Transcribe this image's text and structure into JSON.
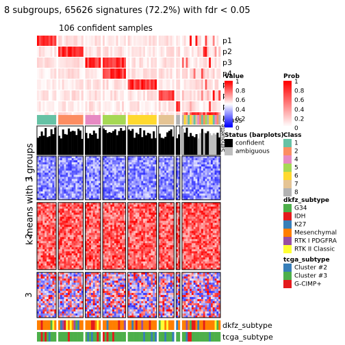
{
  "title": "8 subgroups, 65626 signatures (72.2%) with fdr < 0.05",
  "subtitle": "106 confident samples",
  "ylabel": "k-means with 3 groups",
  "row_groups": [
    "1",
    "2",
    "3"
  ],
  "prob_rows": [
    "p1",
    "p2",
    "p3",
    "p4",
    "p5",
    "p6",
    "p7",
    "p8"
  ],
  "silhouette_label": "Silhouette",
  "class_label": "Class",
  "bottom_annotations": [
    "dkfz_subtype",
    "tcga_subtype"
  ],
  "legend_value": {
    "title": "Value",
    "ticks": [
      "1",
      "0.8",
      "0.6",
      "0.4",
      "0.2",
      "0"
    ]
  },
  "legend_prob": {
    "title": "Prob",
    "ticks": [
      "1",
      "0.8",
      "0.6",
      "0.4",
      "0.2",
      "0"
    ]
  },
  "legend_status": {
    "title": "Status (barplots)",
    "items": [
      {
        "label": "confident",
        "color": "#000000"
      },
      {
        "label": "ambiguous",
        "color": "#bebebe"
      }
    ]
  },
  "legend_class": {
    "title": "Class",
    "items": [
      {
        "label": "1",
        "color": "#66c2a5"
      },
      {
        "label": "2",
        "color": "#fc8d62"
      },
      {
        "label": "4",
        "color": "#e78ac3"
      },
      {
        "label": "5",
        "color": "#a6d854"
      },
      {
        "label": "6",
        "color": "#ffd92f"
      },
      {
        "label": "7",
        "color": "#e5c494"
      },
      {
        "label": "8",
        "color": "#b3b3b3"
      }
    ]
  },
  "legend_dkfz": {
    "title": "dkfz_subtype",
    "items": [
      {
        "label": "G34",
        "color": "#4daf4a"
      },
      {
        "label": "IDH",
        "color": "#e41a1c"
      },
      {
        "label": "K27",
        "color": "#377eb8"
      },
      {
        "label": "Mesenchymal",
        "color": "#ff7f00"
      },
      {
        "label": "RTK I PDGFRA",
        "color": "#984ea3"
      },
      {
        "label": "RTK II Classic",
        "color": "#ffff33"
      }
    ]
  },
  "legend_tcga": {
    "title": "tcga_subtype",
    "items": [
      {
        "label": "Cluster #2",
        "color": "#377eb8"
      },
      {
        "label": "Cluster #3",
        "color": "#4daf4a"
      },
      {
        "label": "G-CIMP+",
        "color": "#e41a1c"
      }
    ]
  },
  "chart_data": {
    "type": "heatmap",
    "title": "8 subgroups, 65626 signatures (72.2%) with fdr < 0.05",
    "subtitle": "106 confident samples",
    "ylabel": "k-means with 3 groups",
    "column_groups": [
      {
        "class": "1",
        "n": 10
      },
      {
        "class": "2",
        "n": 13
      },
      {
        "class": "4",
        "n": 8
      },
      {
        "class": "5",
        "n": 12
      },
      {
        "class": "6",
        "n": 15
      },
      {
        "class": "7",
        "n": 8
      },
      {
        "class": "8",
        "n": 2
      },
      {
        "class": "mixed",
        "n": 20
      }
    ],
    "row_groups": [
      {
        "label": "1",
        "fraction": 0.28,
        "trend": "low"
      },
      {
        "label": "2",
        "fraction": 0.43,
        "trend": "high"
      },
      {
        "label": "3",
        "fraction": 0.29,
        "trend": "mixed"
      }
    ],
    "value_scale": {
      "min": 0,
      "max": 1,
      "low_color": "#0000ff",
      "mid_color": "#ffffff",
      "high_color": "#ff0000"
    }
  }
}
